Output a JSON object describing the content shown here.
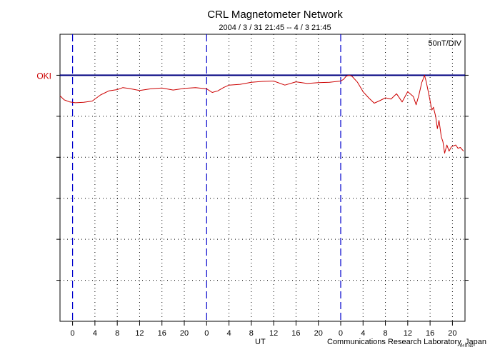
{
  "header": {
    "title": "CRL Magnetometer Network",
    "subtitle": "2004 / 3 / 31   21:45  --  4 / 3   21:45"
  },
  "footer": {
    "axis_label": "UT",
    "credit": "Communications Research Laboratory, Japan",
    "tiny_stamp": "K4 R NS"
  },
  "chart_data": {
    "type": "line",
    "title": "CRL Magnetometer Network",
    "subtitle": "2004 / 3 / 31   21:45  --  4 / 3   21:45",
    "xlabel": "UT",
    "scale_label": "50nT/DIV",
    "xlim": [
      -2.25,
      70.25
    ],
    "ylim": [
      -6,
      1
    ],
    "grid": true,
    "colors": {
      "data": "#cc0000",
      "baseline": "#000080",
      "day_marker": "#0000cc"
    },
    "x_ticks": [
      0,
      4,
      8,
      12,
      16,
      20,
      24,
      28,
      32,
      36,
      40,
      44,
      48,
      52,
      56,
      60,
      64,
      68
    ],
    "x_tick_labels": [
      "0",
      "4",
      "8",
      "12",
      "16",
      "20",
      "0",
      "4",
      "8",
      "12",
      "16",
      "20",
      "0",
      "4",
      "8",
      "12",
      "16",
      "20"
    ],
    "day_boundaries": [
      0,
      24,
      48
    ],
    "series": [
      {
        "name": "OKI",
        "baseline": 0,
        "x": [
          -2.25,
          -1.5,
          -0.5,
          0.5,
          2,
          3.5,
          5,
          6.5,
          8,
          9,
          10,
          12,
          14,
          16,
          18,
          20,
          22,
          24,
          25,
          26,
          27,
          28,
          30,
          32,
          34,
          36,
          38,
          40,
          42,
          44,
          46,
          48,
          48.5,
          49,
          49.5,
          50,
          51,
          52,
          53,
          54,
          55,
          56,
          57,
          58,
          59,
          60,
          61,
          61.5,
          62,
          62.5,
          62.8,
          63,
          63.3,
          63.6,
          64,
          64.3,
          64.6,
          65,
          65.3,
          65.6,
          66,
          66.3,
          66.6,
          67,
          67.4,
          67.8,
          68.2,
          68.6,
          69,
          69.4,
          70
        ],
        "y": [
          -0.5,
          -0.6,
          -0.65,
          -0.67,
          -0.66,
          -0.63,
          -0.48,
          -0.38,
          -0.35,
          -0.3,
          -0.32,
          -0.37,
          -0.33,
          -0.31,
          -0.36,
          -0.32,
          -0.3,
          -0.33,
          -0.42,
          -0.38,
          -0.3,
          -0.24,
          -0.22,
          -0.17,
          -0.15,
          -0.14,
          -0.24,
          -0.16,
          -0.2,
          -0.18,
          -0.17,
          -0.14,
          -0.1,
          -0.02,
          0,
          -0.02,
          -0.17,
          -0.4,
          -0.55,
          -0.68,
          -0.62,
          -0.55,
          -0.58,
          -0.45,
          -0.65,
          -0.4,
          -0.52,
          -0.72,
          -0.48,
          -0.18,
          -0.08,
          0,
          -0.15,
          -0.35,
          -0.62,
          -0.85,
          -0.78,
          -1.0,
          -1.3,
          -1.1,
          -1.5,
          -1.62,
          -1.9,
          -1.7,
          -1.85,
          -1.75,
          -1.72,
          -1.7,
          -1.78,
          -1.76,
          -1.85
        ]
      }
    ]
  }
}
